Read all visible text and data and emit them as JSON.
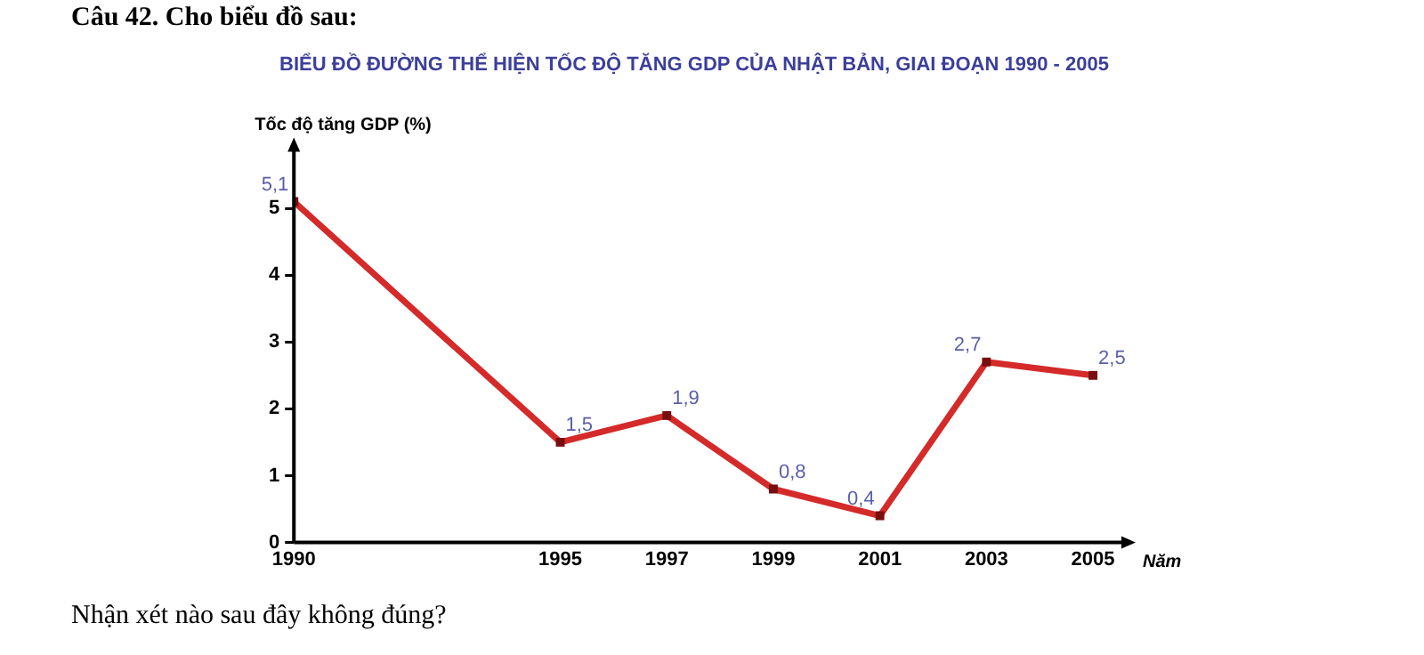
{
  "chart_data": {
    "type": "line",
    "title": "BIỂU ĐỒ ĐƯỜNG THỂ HIỆN TỐC ĐỘ TĂNG GDP CỦA NHẬT BẢN, GIAI ĐOẠN 1990 - 2005",
    "annotations": [
      "Câu 42. Cho biểu đồ sau:",
      "Nhận xét nào sau đây không đúng?"
    ],
    "ylabel": "Tốc độ tăng GDP (%)",
    "xlabel": "Năm",
    "x": [
      1990,
      1995,
      1997,
      1999,
      2001,
      2003,
      2005
    ],
    "series": [
      {
        "color": "#d42a2a",
        "values": [
          5.1,
          1.5,
          1.9,
          0.8,
          0.4,
          2.7,
          2.5
        ],
        "value_labels": [
          "5,1",
          "1,5",
          "1,9",
          "0,8",
          "0,4",
          "2,7",
          "2,5"
        ]
      }
    ],
    "xlim": [
      1990,
      2005.6
    ],
    "xticks": [
      1990,
      1995,
      1997,
      1999,
      2001,
      2003,
      2005
    ],
    "ylim": [
      0,
      5.9
    ],
    "yticks": [
      0,
      1,
      2,
      3,
      4,
      5
    ],
    "grid": false,
    "legend": false,
    "marker": "square",
    "line_style": "solid"
  }
}
